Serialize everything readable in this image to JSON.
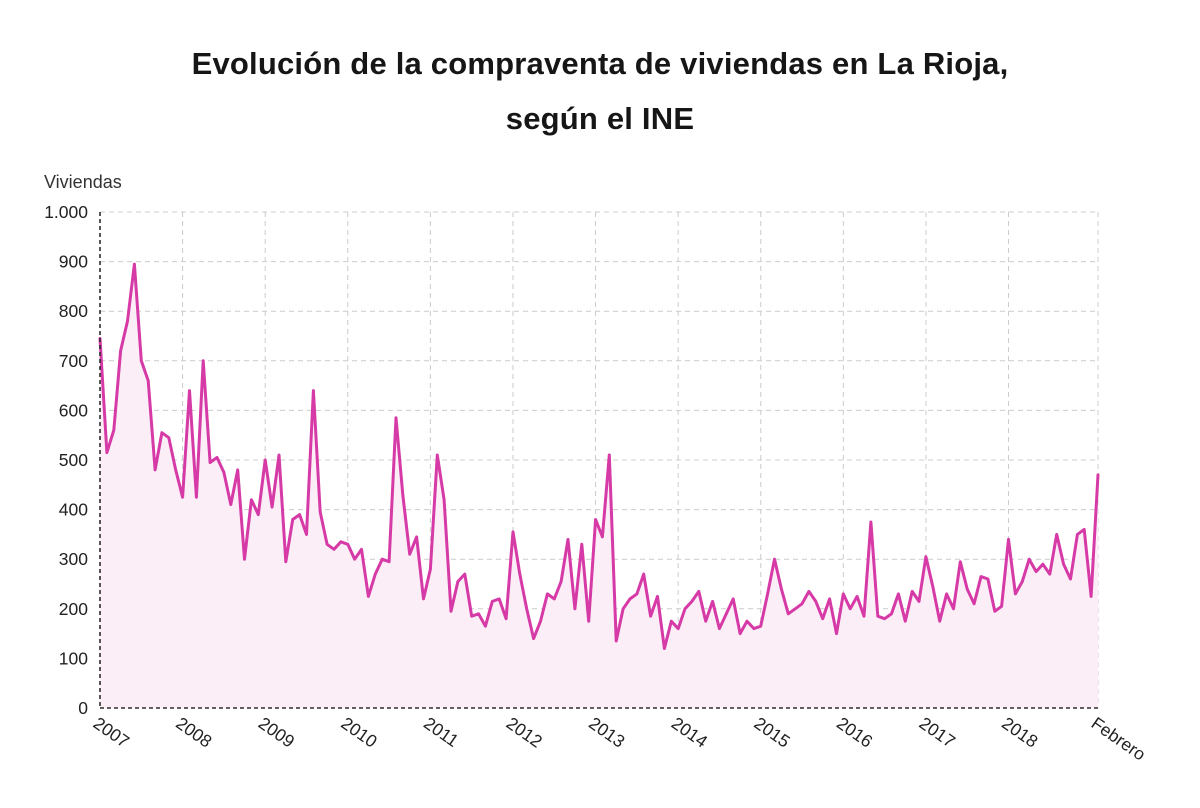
{
  "page": {
    "title_line1": "Evolución de la compraventa de viviendas en La Rioja,",
    "title_line2": "según el INE"
  },
  "chart_data": {
    "type": "area",
    "title": "Evolución de la compraventa de viviendas en La Rioja, según el INE",
    "ylabel": "Viviendas",
    "xlabel": "",
    "ylim": [
      0,
      1000
    ],
    "grid": true,
    "legend": "none",
    "line_color": "#d63aa6",
    "fill_color": "#fbeef7",
    "grid_color": "#cccccc",
    "axis_color": "#2e2e2e",
    "yticks": [
      0,
      100,
      200,
      300,
      400,
      500,
      600,
      700,
      800,
      900,
      1000
    ],
    "ytick_labels": [
      "0",
      "100",
      "200",
      "300",
      "400",
      "500",
      "600",
      "700",
      "800",
      "900",
      "1.000"
    ],
    "x_year_labels": [
      "2007",
      "2008",
      "2009",
      "2010",
      "2011",
      "2012",
      "2013",
      "2014",
      "2015",
      "2016",
      "2017",
      "2018"
    ],
    "x_end_label": "Febrero",
    "frequency": "monthly",
    "period": "2007-01 to 2019-02",
    "values": [
      745,
      515,
      560,
      720,
      780,
      895,
      700,
      660,
      480,
      555,
      545,
      480,
      425,
      640,
      425,
      700,
      495,
      505,
      475,
      410,
      480,
      300,
      420,
      390,
      500,
      405,
      510,
      295,
      380,
      390,
      350,
      640,
      395,
      330,
      320,
      335,
      330,
      300,
      320,
      225,
      270,
      300,
      295,
      585,
      430,
      310,
      345,
      220,
      280,
      510,
      420,
      195,
      255,
      270,
      185,
      190,
      165,
      215,
      220,
      180,
      355,
      270,
      200,
      140,
      175,
      230,
      220,
      255,
      340,
      200,
      330,
      175,
      380,
      345,
      510,
      135,
      200,
      220,
      230,
      270,
      185,
      225,
      120,
      175,
      160,
      200,
      215,
      235,
      175,
      215,
      160,
      190,
      220,
      150,
      175,
      160,
      165,
      230,
      300,
      240,
      190,
      200,
      210,
      235,
      215,
      180,
      220,
      150,
      230,
      200,
      225,
      185,
      375,
      185,
      180,
      190,
      230,
      175,
      235,
      215,
      305,
      245,
      175,
      230,
      200,
      295,
      240,
      210,
      265,
      260,
      195,
      205,
      340,
      230,
      255,
      300,
      275,
      290,
      270,
      350,
      290,
      260,
      350,
      360,
      225,
      470
    ]
  }
}
